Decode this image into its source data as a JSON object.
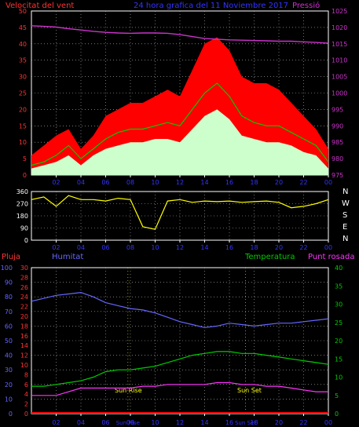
{
  "header": {
    "left_label": "Velocitat del vent",
    "center_label": "24 hora grafica del 11 Noviembre 2017",
    "right_label": "Pressió"
  },
  "panel3_header": {
    "pluja": "Pluja",
    "humitat": "Humitat",
    "temperatura": "Temperatura",
    "punt_rosada": "Punt rosada"
  },
  "compass_labels": [
    "N",
    "W",
    "S",
    "E",
    "N"
  ],
  "annotations": {
    "sun_rise": "Sun Rise",
    "sun_set": "Sun Set"
  },
  "colors": {
    "wind_gust": "#ff0000",
    "wind_avg": "#00cc00",
    "wind_speed": "#ccffcc",
    "pressure": "#cc33cc",
    "direction": "#ffff00",
    "humidity": "#6666ff",
    "temperature": "#00cc00",
    "dewpoint": "#ff33ff",
    "rain": "#ff0000",
    "axis_red": "#ff3333",
    "axis_blue": "#6666ff",
    "axis_green": "#00cc00",
    "axis_magenta": "#cc33cc",
    "frame": "#ffffff",
    "grid": "#bbbbbb"
  },
  "chart_data": [
    {
      "type": "line",
      "name": "wind",
      "x_ticks": [
        "02",
        "04",
        "06",
        "08",
        "10",
        "12",
        "14",
        "16",
        "18",
        "20",
        "22",
        "00"
      ],
      "x_hours": [
        0,
        1,
        2,
        3,
        4,
        5,
        6,
        7,
        8,
        9,
        10,
        11,
        12,
        13,
        14,
        15,
        16,
        17,
        18,
        19,
        20,
        21,
        22,
        23,
        24
      ],
      "y_left_ticks": [
        0,
        5,
        10,
        15,
        20,
        25,
        30,
        35,
        40,
        45,
        50
      ],
      "y_left_range": [
        0,
        50
      ],
      "y_right_ticks": [
        975,
        980,
        985,
        990,
        995,
        1000,
        1005,
        1010,
        1015,
        1020,
        1025
      ],
      "y_right_range": [
        975,
        1025
      ],
      "gust": [
        6,
        9,
        12,
        14,
        8,
        12,
        18,
        20,
        22,
        22,
        24,
        26,
        24,
        32,
        40,
        42,
        38,
        30,
        28,
        28,
        26,
        22,
        18,
        14,
        8
      ],
      "average": [
        3,
        4,
        6,
        9,
        5,
        8,
        11,
        13,
        14,
        14,
        15,
        16,
        15,
        20,
        25,
        28,
        24,
        18,
        16,
        15,
        15,
        13,
        11,
        9,
        4
      ],
      "speed": [
        2,
        3,
        4,
        6,
        3,
        6,
        8,
        9,
        10,
        10,
        11,
        11,
        10,
        14,
        18,
        20,
        17,
        12,
        11,
        10,
        10,
        9,
        7,
        6,
        2
      ],
      "pressure": [
        1020.5,
        1020.3,
        1020.1,
        1019.6,
        1019.2,
        1018.8,
        1018.5,
        1018.3,
        1018.2,
        1018.3,
        1018.3,
        1018.2,
        1017.8,
        1017.2,
        1016.6,
        1016.4,
        1016.2,
        1016.1,
        1016.0,
        1015.9,
        1015.8,
        1015.8,
        1015.6,
        1015.4,
        1015.2
      ]
    },
    {
      "type": "line",
      "name": "direction",
      "x_ticks": [
        "02",
        "04",
        "06",
        "08",
        "10",
        "12",
        "14",
        "16",
        "18",
        "20",
        "22",
        "00"
      ],
      "y_ticks": [
        0,
        90,
        180,
        270,
        360
      ],
      "y_range": [
        0,
        360
      ],
      "x_hours": [
        0,
        1,
        2,
        3,
        4,
        5,
        6,
        7,
        8,
        9,
        10,
        11,
        12,
        13,
        14,
        15,
        16,
        17,
        18,
        19,
        20,
        21,
        22,
        23,
        24
      ],
      "values": [
        300,
        320,
        250,
        330,
        300,
        300,
        290,
        310,
        300,
        100,
        80,
        290,
        300,
        280,
        290,
        285,
        290,
        280,
        285,
        290,
        280,
        240,
        250,
        270,
        300
      ]
    },
    {
      "type": "line",
      "name": "temperature_humidity",
      "x_ticks": [
        "02",
        "04",
        "06",
        "08",
        "10",
        "12",
        "14",
        "16",
        "18",
        "20",
        "22",
        "00"
      ],
      "x_extra_ticks": [
        "Sun Rise",
        "Sun Set"
      ],
      "sun_rise_hour": 7.8,
      "sun_set_hour": 17.3,
      "y_humidity_ticks": [
        0,
        10,
        20,
        30,
        40,
        50,
        60,
        70,
        80,
        90,
        100
      ],
      "y_humidity_range": [
        0,
        100
      ],
      "y_rain_ticks": [
        0,
        2,
        4,
        6,
        8,
        10,
        12,
        14,
        16,
        18,
        20,
        22,
        24,
        26,
        28,
        30
      ],
      "y_temp_ticks": [
        0,
        5,
        10,
        15,
        20,
        25,
        30,
        35,
        40
      ],
      "y_temp_range": [
        0,
        40
      ],
      "x_hours": [
        0,
        1,
        2,
        3,
        4,
        5,
        6,
        7,
        8,
        9,
        10,
        11,
        12,
        13,
        14,
        15,
        16,
        17,
        18,
        19,
        20,
        21,
        22,
        23,
        24
      ],
      "humidity": [
        77,
        79,
        81,
        82,
        83,
        80,
        76,
        74,
        72,
        71,
        69,
        66,
        63,
        61,
        59,
        60,
        62,
        61,
        60,
        61,
        62,
        62,
        63,
        64,
        65
      ],
      "temperature": [
        7.5,
        7.5,
        8.0,
        8.5,
        9.0,
        10.0,
        11.5,
        12.0,
        12.0,
        12.5,
        13.0,
        14.0,
        15.0,
        16.0,
        16.5,
        17.0,
        17.0,
        16.5,
        16.5,
        16.0,
        15.5,
        15.0,
        14.5,
        14.0,
        13.5
      ],
      "dewpoint": [
        5.0,
        5.0,
        5.0,
        6.0,
        7.0,
        7.0,
        7.0,
        7.0,
        7.0,
        7.5,
        7.5,
        8.0,
        8.0,
        8.0,
        8.0,
        8.5,
        8.5,
        8.0,
        8.0,
        7.5,
        7.5,
        7.0,
        6.5,
        6.0,
        6.0
      ],
      "rain": [
        0,
        0,
        0,
        0,
        0,
        0,
        0,
        0,
        0,
        0,
        0,
        0,
        0,
        0,
        0,
        0,
        0,
        0,
        0,
        0,
        0,
        0,
        0,
        0,
        0
      ]
    }
  ]
}
